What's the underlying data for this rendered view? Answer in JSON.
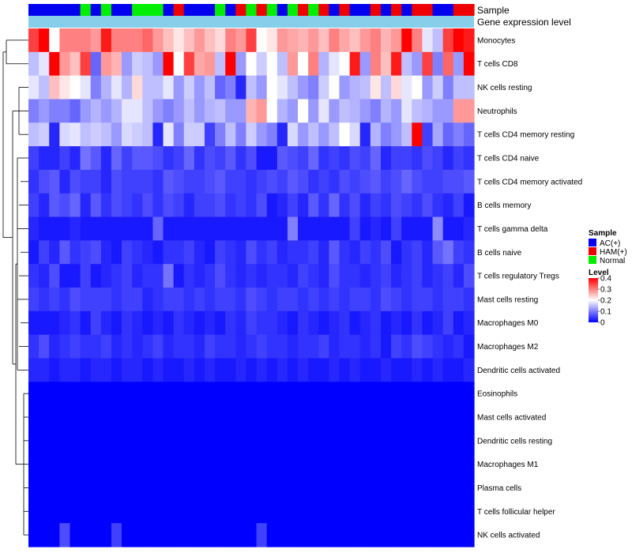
{
  "chart_data": {
    "type": "heatmap",
    "title": "",
    "annotation_labels": {
      "sample": "Sample",
      "expression": "Gene expression level"
    },
    "legend": {
      "sample_title": "Sample",
      "level_title": "Level",
      "groups": [
        {
          "name": "AC(+)",
          "color": "#0000EE"
        },
        {
          "name": "HAM(+)",
          "color": "#EE0000"
        },
        {
          "name": "Normal",
          "color": "#00EE00"
        }
      ],
      "ticks": [
        0.4,
        0.3,
        0.2,
        0.1,
        0
      ],
      "tick_labels": [
        "0.4",
        "0.3",
        "0.2",
        "0.1",
        "0"
      ],
      "range": [
        0,
        0.4
      ],
      "colors": {
        "low": "#0000FF",
        "mid": "#FFFFFF",
        "high": "#FF0000"
      },
      "expression_bar_color": "#87CEEB"
    },
    "sample_groups": [
      "AC(+)",
      "AC(+)",
      "AC(+)",
      "AC(+)",
      "AC(+)",
      "Normal",
      "AC(+)",
      "Normal",
      "AC(+)",
      "AC(+)",
      "Normal",
      "Normal",
      "Normal",
      "AC(+)",
      "HAM(+)",
      "AC(+)",
      "AC(+)",
      "AC(+)",
      "Normal",
      "AC(+)",
      "HAM(+)",
      "Normal",
      "HAM(+)",
      "Normal",
      "AC(+)",
      "Normal",
      "HAM(+)",
      "Normal",
      "HAM(+)",
      "AC(+)",
      "HAM(+)",
      "AC(+)",
      "AC(+)",
      "HAM(+)",
      "AC(+)",
      "HAM(+)",
      "AC(+)",
      "HAM(+)",
      "HAM(+)",
      "AC(+)",
      "AC(+)",
      "HAM(+)",
      "HAM(+)"
    ],
    "rows": [
      {
        "name": "Monocytes",
        "values": [
          0.35,
          0.4,
          0.2,
          0.3,
          0.3,
          0.3,
          0.28,
          0.38,
          0.3,
          0.3,
          0.3,
          0.32,
          0.28,
          0.25,
          0.22,
          0.25,
          0.28,
          0.25,
          0.23,
          0.3,
          0.28,
          0.35,
          0.2,
          0.22,
          0.28,
          0.27,
          0.26,
          0.28,
          0.25,
          0.3,
          0.27,
          0.25,
          0.28,
          0.3,
          0.26,
          0.28,
          0.4,
          0.3,
          0.18,
          0.15,
          0.35,
          0.4,
          0.38
        ]
      },
      {
        "name": "T cells CD8",
        "values": [
          0.15,
          0.18,
          0.4,
          0.28,
          0.25,
          0.35,
          0.08,
          0.28,
          0.26,
          0.12,
          0.16,
          0.15,
          0.12,
          0.4,
          0.2,
          0.35,
          0.27,
          0.28,
          0.15,
          0.4,
          0.12,
          0.2,
          0.16,
          0.2,
          0.15,
          0.28,
          0.2,
          0.3,
          0.14,
          0.18,
          0.2,
          0.38,
          0.12,
          0.3,
          0.25,
          0.38,
          0.15,
          0.12,
          0.35,
          0.1,
          0.32,
          0.12,
          0.4
        ]
      },
      {
        "name": "NK cells resting",
        "values": [
          0.18,
          0.15,
          0.25,
          0.22,
          0.2,
          0.18,
          0.1,
          0.14,
          0.18,
          0.14,
          0.23,
          0.15,
          0.15,
          0.18,
          0.12,
          0.16,
          0.12,
          0.15,
          0.08,
          0.1,
          0.03,
          0.15,
          0.12,
          0.2,
          0.18,
          0.15,
          0.12,
          0.1,
          0.16,
          0.2,
          0.12,
          0.14,
          0.15,
          0.22,
          0.15,
          0.23,
          0.18,
          0.2,
          0.12,
          0.16,
          0.1,
          0.15,
          0.15
        ]
      },
      {
        "name": "Neutrophils",
        "values": [
          0.1,
          0.12,
          0.1,
          0.1,
          0.08,
          0.12,
          0.14,
          0.12,
          0.14,
          0.18,
          0.18,
          0.15,
          0.12,
          0.1,
          0.12,
          0.15,
          0.12,
          0.14,
          0.15,
          0.12,
          0.12,
          0.26,
          0.28,
          0.2,
          0.14,
          0.12,
          0.2,
          0.12,
          0.18,
          0.12,
          0.15,
          0.14,
          0.12,
          0.1,
          0.14,
          0.12,
          0.18,
          0.15,
          0.14,
          0.12,
          0.12,
          0.28,
          0.28
        ]
      },
      {
        "name": "T cells CD4 memory resting",
        "values": [
          0.15,
          0.16,
          0.03,
          0.17,
          0.18,
          0.15,
          0.16,
          0.15,
          0.12,
          0.17,
          0.16,
          0.15,
          0.03,
          0.18,
          0.1,
          0.16,
          0.16,
          0.05,
          0.1,
          0.15,
          0.1,
          0.16,
          0.12,
          0.1,
          0.03,
          0.17,
          0.12,
          0.15,
          0.12,
          0.15,
          0.2,
          0.17,
          0.03,
          0.14,
          0.1,
          0.12,
          0.15,
          0.4,
          0.05,
          0.13,
          0.08,
          0.1,
          0.08
        ]
      },
      {
        "name": "T cells CD4 naive",
        "values": [
          0.05,
          0.03,
          0.03,
          0.05,
          0.03,
          0.09,
          0.07,
          0.03,
          0.08,
          0.05,
          0.07,
          0.07,
          0.06,
          0.04,
          0.05,
          0.08,
          0.04,
          0.06,
          0.05,
          0.07,
          0.04,
          0.06,
          0.02,
          0.02,
          0.07,
          0.06,
          0.05,
          0.08,
          0.04,
          0.05,
          0.04,
          0.06,
          0.05,
          0.08,
          0.03,
          0.05,
          0.05,
          0.04,
          0.06,
          0.05,
          0.03,
          0.05,
          0.04
        ]
      },
      {
        "name": "T cells CD4 memory activated",
        "values": [
          0.04,
          0.06,
          0.07,
          0.03,
          0.06,
          0.05,
          0.05,
          0.03,
          0.06,
          0.05,
          0.05,
          0.05,
          0.04,
          0.07,
          0.06,
          0.05,
          0.05,
          0.06,
          0.07,
          0.05,
          0.05,
          0.04,
          0.05,
          0.06,
          0.05,
          0.07,
          0.06,
          0.04,
          0.05,
          0.04,
          0.06,
          0.05,
          0.06,
          0.07,
          0.05,
          0.06,
          0.08,
          0.06,
          0.05,
          0.05,
          0.06,
          0.06,
          0.07
        ]
      },
      {
        "name": "B cells memory",
        "values": [
          0.05,
          0.03,
          0.07,
          0.06,
          0.08,
          0.03,
          0.07,
          0.04,
          0.06,
          0.05,
          0.04,
          0.06,
          0.04,
          0.06,
          0.05,
          0.03,
          0.05,
          0.05,
          0.06,
          0.04,
          0.05,
          0.04,
          0.06,
          0.02,
          0.03,
          0.05,
          0.03,
          0.07,
          0.04,
          0.08,
          0.04,
          0.06,
          0.03,
          0.05,
          0.04,
          0.06,
          0.05,
          0.04,
          0.06,
          0.04,
          0.03,
          0.05,
          0.02
        ]
      },
      {
        "name": "T cells gamma delta",
        "values": [
          0.03,
          0.02,
          0.02,
          0.02,
          0.03,
          0.02,
          0.02,
          0.02,
          0.02,
          0.02,
          0.02,
          0.02,
          0.08,
          0.02,
          0.02,
          0.02,
          0.02,
          0.02,
          0.02,
          0.02,
          0.02,
          0.02,
          0.02,
          0.02,
          0.02,
          0.1,
          0.02,
          0.02,
          0.02,
          0.02,
          0.02,
          0.05,
          0.02,
          0.03,
          0.02,
          0.05,
          0.02,
          0.02,
          0.02,
          0.11,
          0.02,
          0.02,
          0.03
        ]
      },
      {
        "name": "B cells naive",
        "values": [
          0.02,
          0.05,
          0.03,
          0.07,
          0.04,
          0.05,
          0.06,
          0.03,
          0.02,
          0.05,
          0.04,
          0.03,
          0.02,
          0.04,
          0.04,
          0.05,
          0.03,
          0.02,
          0.05,
          0.04,
          0.03,
          0.06,
          0.04,
          0.05,
          0.03,
          0.04,
          0.04,
          0.05,
          0.03,
          0.07,
          0.04,
          0.03,
          0.05,
          0.04,
          0.06,
          0.02,
          0.04,
          0.05,
          0.03,
          0.07,
          0.09,
          0.05,
          0.04
        ]
      },
      {
        "name": "T cells regulatory  Tregs",
        "values": [
          0.04,
          0.03,
          0.06,
          0.02,
          0.02,
          0.05,
          0.02,
          0.03,
          0.04,
          0.05,
          0.03,
          0.04,
          0.04,
          0.09,
          0.02,
          0.04,
          0.03,
          0.04,
          0.06,
          0.04,
          0.03,
          0.04,
          0.03,
          0.04,
          0.04,
          0.03,
          0.05,
          0.04,
          0.03,
          0.06,
          0.04,
          0.04,
          0.03,
          0.04,
          0.05,
          0.03,
          0.04,
          0.05,
          0.03,
          0.04,
          0.05,
          0.03,
          0.06
        ]
      },
      {
        "name": "Mast cells resting",
        "values": [
          0.05,
          0.04,
          0.05,
          0.04,
          0.06,
          0.05,
          0.05,
          0.05,
          0.04,
          0.05,
          0.05,
          0.03,
          0.04,
          0.05,
          0.05,
          0.04,
          0.05,
          0.04,
          0.05,
          0.05,
          0.04,
          0.06,
          0.05,
          0.04,
          0.05,
          0.05,
          0.04,
          0.05,
          0.04,
          0.05,
          0.04,
          0.05,
          0.05,
          0.04,
          0.06,
          0.05,
          0.04,
          0.05,
          0.05,
          0.04,
          0.05,
          0.05,
          0.04
        ]
      },
      {
        "name": "Macrophages M0",
        "values": [
          0.02,
          0.02,
          0.02,
          0.03,
          0.04,
          0.02,
          0.05,
          0.03,
          0.02,
          0.04,
          0.03,
          0.02,
          0.03,
          0.02,
          0.04,
          0.03,
          0.02,
          0.03,
          0.02,
          0.04,
          0.03,
          0.05,
          0.04,
          0.04,
          0.03,
          0.02,
          0.04,
          0.03,
          0.02,
          0.03,
          0.04,
          0.02,
          0.03,
          0.04,
          0.02,
          0.03,
          0.02,
          0.04,
          0.02,
          0.03,
          0.05,
          0.02,
          0.03
        ]
      },
      {
        "name": "Macrophages M2",
        "values": [
          0.04,
          0.06,
          0.03,
          0.04,
          0.05,
          0.04,
          0.04,
          0.05,
          0.03,
          0.04,
          0.03,
          0.04,
          0.05,
          0.03,
          0.04,
          0.04,
          0.03,
          0.05,
          0.04,
          0.04,
          0.03,
          0.04,
          0.05,
          0.04,
          0.04,
          0.03,
          0.04,
          0.04,
          0.05,
          0.03,
          0.04,
          0.04,
          0.03,
          0.04,
          0.02,
          0.05,
          0.04,
          0.06,
          0.05,
          0.04,
          0.03,
          0.04,
          0.02
        ]
      },
      {
        "name": "Dendritic cells activated",
        "values": [
          0.03,
          0.03,
          0.02,
          0.03,
          0.03,
          0.02,
          0.03,
          0.03,
          0.02,
          0.03,
          0.03,
          0.02,
          0.03,
          0.02,
          0.02,
          0.03,
          0.02,
          0.03,
          0.02,
          0.02,
          0.03,
          0.02,
          0.03,
          0.02,
          0.03,
          0.02,
          0.03,
          0.02,
          0.02,
          0.03,
          0.02,
          0.03,
          0.02,
          0.02,
          0.03,
          0.02,
          0.02,
          0.03,
          0.02,
          0.03,
          0.02,
          0.02,
          0.03
        ]
      },
      {
        "name": "Eosinophils",
        "values": [
          0,
          0,
          0,
          0,
          0,
          0,
          0,
          0,
          0,
          0,
          0,
          0,
          0,
          0,
          0,
          0,
          0,
          0,
          0,
          0,
          0,
          0,
          0,
          0,
          0,
          0,
          0,
          0,
          0,
          0,
          0,
          0,
          0,
          0,
          0,
          0,
          0,
          0,
          0,
          0,
          0,
          0,
          0
        ]
      },
      {
        "name": "Mast cells activated",
        "values": [
          0,
          0,
          0,
          0,
          0,
          0,
          0,
          0,
          0,
          0,
          0,
          0,
          0,
          0,
          0,
          0,
          0,
          0,
          0,
          0,
          0,
          0,
          0,
          0,
          0,
          0,
          0,
          0,
          0,
          0,
          0,
          0,
          0,
          0,
          0,
          0,
          0,
          0,
          0,
          0,
          0,
          0,
          0
        ]
      },
      {
        "name": "Dendritic cells resting",
        "values": [
          0,
          0,
          0,
          0,
          0,
          0,
          0,
          0,
          0,
          0,
          0,
          0,
          0,
          0,
          0,
          0,
          0,
          0,
          0,
          0,
          0,
          0,
          0,
          0,
          0,
          0,
          0,
          0,
          0,
          0,
          0,
          0,
          0,
          0,
          0,
          0,
          0,
          0,
          0,
          0,
          0,
          0,
          0
        ]
      },
      {
        "name": "Macrophages M1",
        "values": [
          0,
          0,
          0,
          0,
          0,
          0,
          0,
          0,
          0,
          0,
          0,
          0,
          0,
          0,
          0,
          0,
          0,
          0,
          0,
          0,
          0,
          0,
          0,
          0,
          0,
          0,
          0,
          0,
          0,
          0,
          0,
          0,
          0,
          0,
          0,
          0,
          0,
          0,
          0,
          0,
          0,
          0,
          0
        ]
      },
      {
        "name": "Plasma cells",
        "values": [
          0,
          0,
          0,
          0,
          0,
          0,
          0,
          0,
          0,
          0,
          0,
          0,
          0,
          0,
          0,
          0,
          0,
          0,
          0,
          0,
          0,
          0,
          0,
          0,
          0,
          0,
          0,
          0,
          0,
          0,
          0,
          0,
          0,
          0,
          0,
          0,
          0,
          0,
          0,
          0,
          0,
          0,
          0
        ]
      },
      {
        "name": "T cells follicular helper",
        "values": [
          0,
          0,
          0,
          0,
          0,
          0,
          0,
          0,
          0,
          0,
          0,
          0,
          0,
          0,
          0,
          0,
          0,
          0,
          0,
          0,
          0,
          0,
          0,
          0,
          0,
          0,
          0,
          0,
          0,
          0,
          0,
          0,
          0,
          0,
          0,
          0,
          0,
          0,
          0,
          0,
          0,
          0,
          0
        ]
      },
      {
        "name": "NK cells activated",
        "values": [
          0,
          0,
          0,
          0.06,
          0,
          0,
          0,
          0,
          0.05,
          0,
          0,
          0,
          0,
          0,
          0,
          0,
          0,
          0,
          0,
          0,
          0,
          0,
          0.05,
          0,
          0,
          0,
          0,
          0,
          0,
          0,
          0,
          0,
          0,
          0,
          0,
          0,
          0,
          0,
          0,
          0,
          0,
          0,
          0
        ]
      }
    ]
  }
}
